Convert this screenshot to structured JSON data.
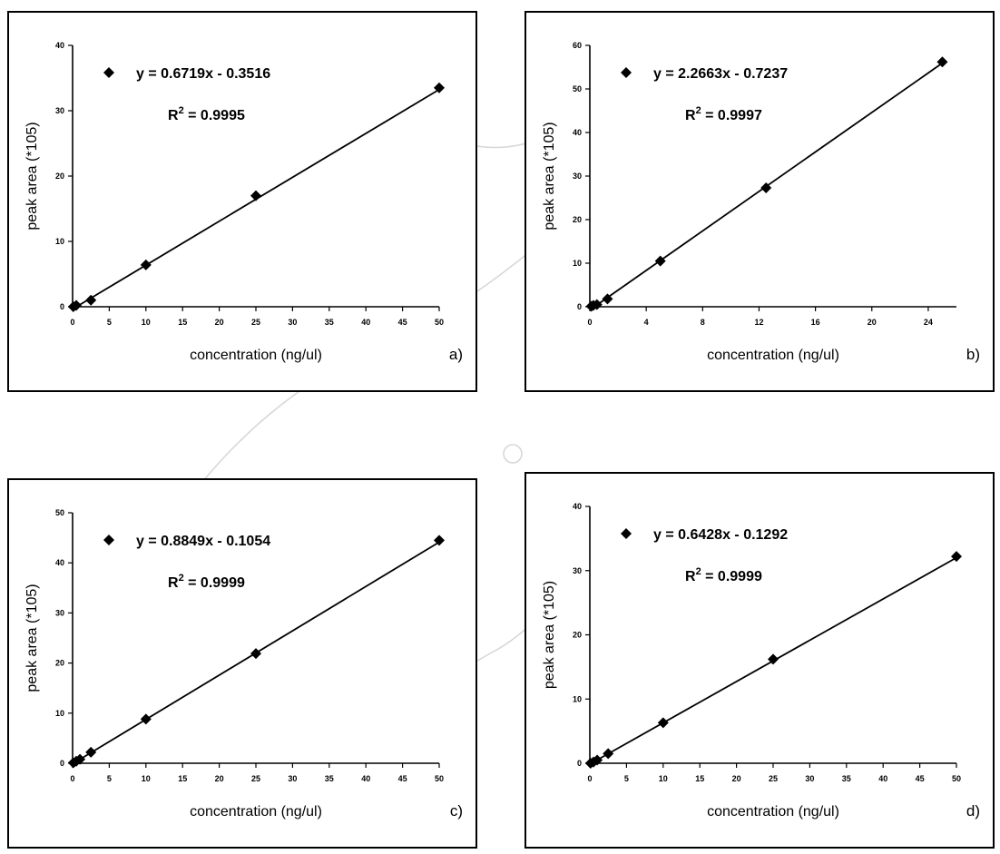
{
  "chart_data": [
    {
      "type": "scatter",
      "panel_label": "a)",
      "equation": "y = 0.6719x - 0.3516",
      "r2_prefix": "R",
      "r2_exp": "2",
      "r2_value": " = 0.9995",
      "xlabel": "concentration (ng/ul)",
      "ylabel": "peak area (*105)",
      "xlim": [
        0,
        50
      ],
      "ylim": [
        0,
        40
      ],
      "xticks": [
        0,
        5,
        10,
        15,
        20,
        25,
        30,
        35,
        40,
        45,
        50
      ],
      "yticks": [
        0,
        10,
        20,
        30,
        40
      ],
      "x": [
        0.1,
        0.5,
        2.5,
        10,
        25,
        50
      ],
      "y": [
        0.0,
        0.2,
        1.0,
        6.4,
        17.0,
        33.5
      ],
      "trendline": {
        "slope": 0.6719,
        "intercept": -0.3516
      },
      "grid": false,
      "legend": "top-left",
      "marker": "diamond"
    },
    {
      "type": "scatter",
      "panel_label": "b)",
      "equation": "y = 2.2663x - 0.7237",
      "r2_prefix": "R",
      "r2_exp": "2",
      "r2_value": " = 0.9997",
      "xlabel": "concentration (ng/ul)",
      "ylabel": "peak area (*105)",
      "xlim": [
        0,
        26
      ],
      "ylim": [
        0,
        60
      ],
      "xticks": [
        0,
        4,
        8,
        12,
        16,
        20,
        24
      ],
      "yticks": [
        0,
        10,
        20,
        30,
        40,
        50,
        60
      ],
      "x": [
        0.1,
        0.25,
        0.5,
        1.25,
        5,
        12.5,
        25
      ],
      "y": [
        0.1,
        0.3,
        0.5,
        1.8,
        10.5,
        27.3,
        56.2
      ],
      "trendline": {
        "slope": 2.2663,
        "intercept": -0.7237
      },
      "grid": false,
      "legend": "top-left",
      "marker": "diamond"
    },
    {
      "type": "scatter",
      "panel_label": "c)",
      "equation": "y = 0.8849x - 0.1054",
      "r2_prefix": "R",
      "r2_exp": "2",
      "r2_value": " = 0.9999",
      "xlabel": "concentration (ng/ul)",
      "ylabel": "peak area (*105)",
      "xlim": [
        0,
        50
      ],
      "ylim": [
        0,
        50
      ],
      "xticks": [
        0,
        5,
        10,
        15,
        20,
        25,
        30,
        35,
        40,
        45,
        50
      ],
      "yticks": [
        0,
        10,
        20,
        30,
        40,
        50
      ],
      "x": [
        0.1,
        0.5,
        1,
        2.5,
        10,
        25,
        50
      ],
      "y": [
        0.1,
        0.4,
        0.8,
        2.2,
        8.8,
        21.9,
        44.5
      ],
      "trendline": {
        "slope": 0.8849,
        "intercept": -0.1054
      },
      "grid": false,
      "legend": "top-left",
      "marker": "diamond"
    },
    {
      "type": "scatter",
      "panel_label": "d)",
      "equation": "y = 0.6428x - 0.1292",
      "r2_prefix": "R",
      "r2_exp": "2",
      "r2_value": " = 0.9999",
      "xlabel": "concentration (ng/ul)",
      "ylabel": "peak area (*105)",
      "xlim": [
        0,
        50
      ],
      "ylim": [
        0,
        40
      ],
      "xticks": [
        0,
        5,
        10,
        15,
        20,
        25,
        30,
        35,
        40,
        45,
        50
      ],
      "yticks": [
        0,
        10,
        20,
        30,
        40
      ],
      "x": [
        0.1,
        0.5,
        1,
        2.5,
        10,
        25,
        50
      ],
      "y": [
        0.0,
        0.2,
        0.5,
        1.5,
        6.3,
        16.2,
        32.2
      ],
      "trendline": {
        "slope": 0.6428,
        "intercept": -0.1292
      },
      "grid": false,
      "legend": "top-left",
      "marker": "diamond"
    }
  ]
}
